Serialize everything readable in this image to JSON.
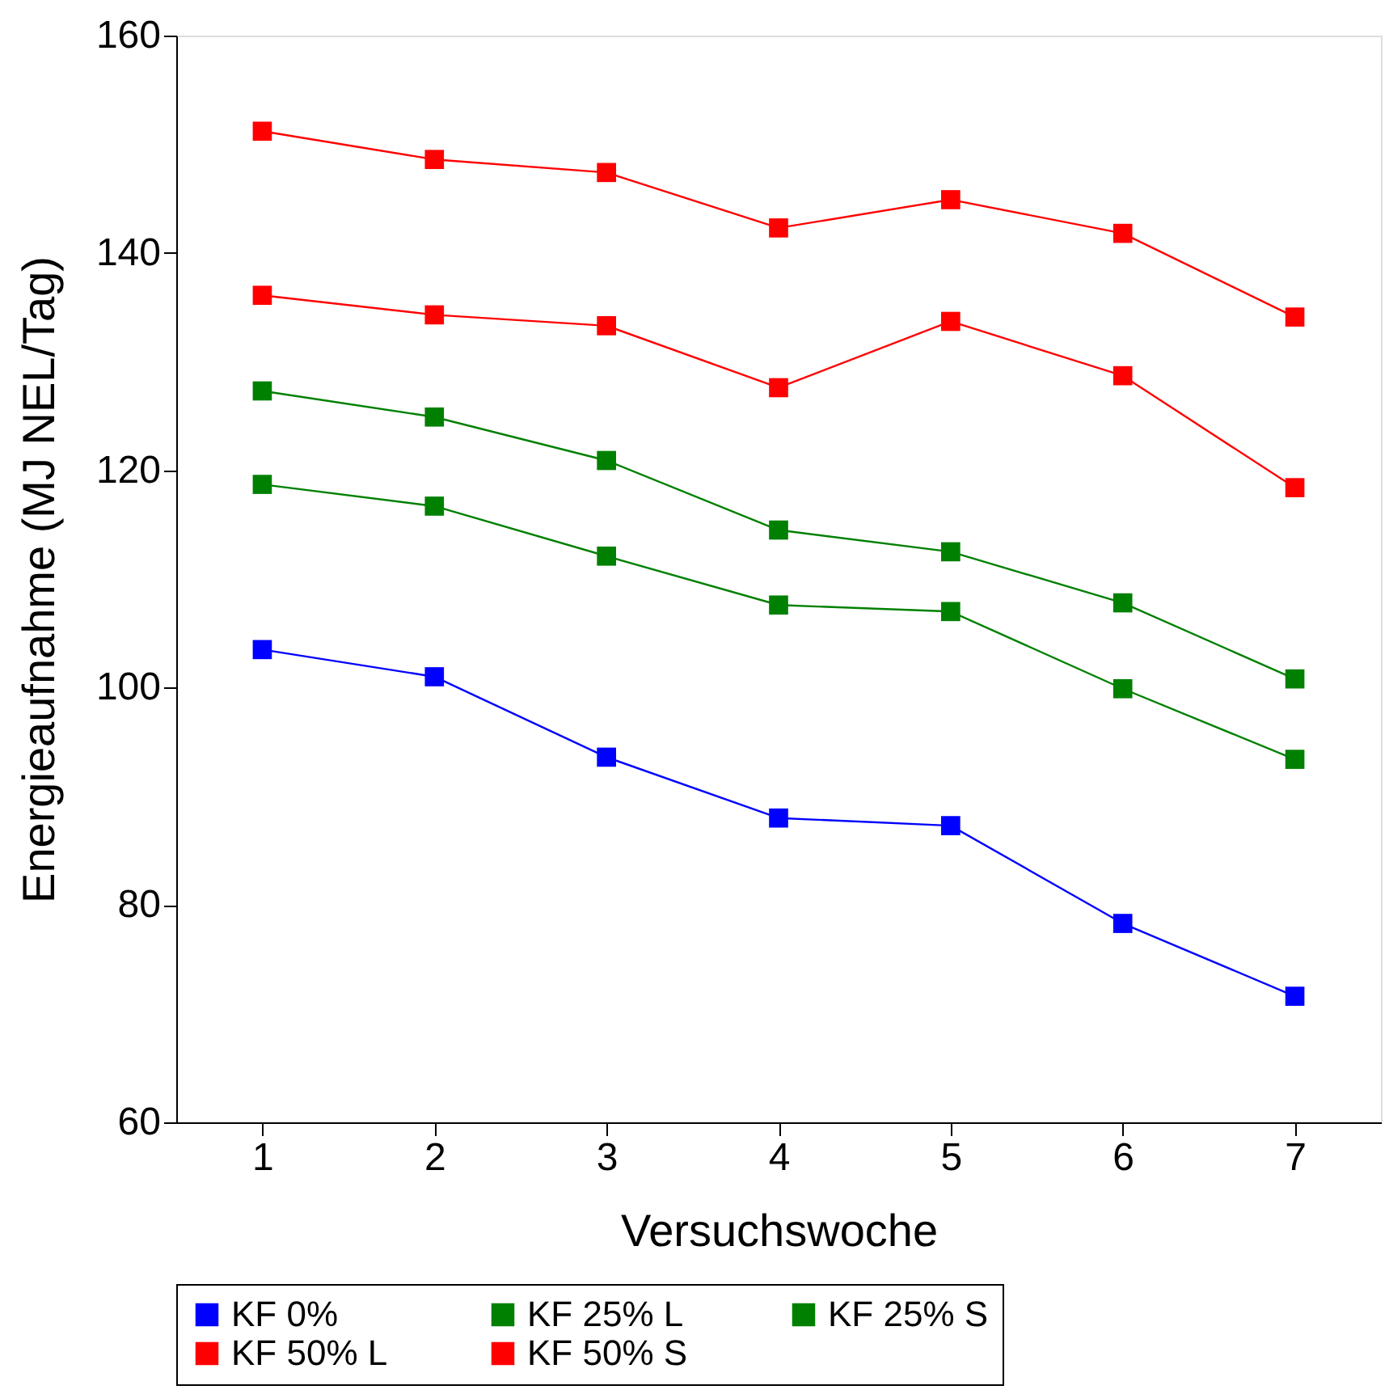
{
  "chart_data": {
    "type": "line",
    "xlabel": "Versuchswoche",
    "ylabel": "Energieaufnahme (MJ NEL/Tag)",
    "x": [
      1,
      2,
      3,
      4,
      5,
      6,
      7
    ],
    "xlim": [
      0.5,
      7.5
    ],
    "xticks": [
      1,
      2,
      3,
      4,
      5,
      6,
      7
    ],
    "ylim": [
      60,
      160
    ],
    "yticks": [
      60,
      80,
      100,
      120,
      140,
      160
    ],
    "grid": false,
    "legend": "bottom",
    "marker": "square",
    "line_style": "solid",
    "series": [
      {
        "name": "KF 0%",
        "color": "#0000ff",
        "values": [
          103.5,
          101.0,
          93.6,
          88.0,
          87.3,
          78.3,
          71.6
        ]
      },
      {
        "name": "KF 25% L",
        "color": "#008000",
        "values": [
          127.3,
          124.9,
          120.9,
          114.5,
          112.5,
          107.8,
          100.8
        ]
      },
      {
        "name": "KF 25% S",
        "color": "#008000",
        "values": [
          118.7,
          116.7,
          112.1,
          107.6,
          107.0,
          99.9,
          93.4
        ]
      },
      {
        "name": "KF 50% L",
        "color": "#ff0000",
        "values": [
          151.2,
          148.6,
          147.4,
          142.3,
          144.9,
          141.8,
          134.1
        ]
      },
      {
        "name": "KF 50% S",
        "color": "#ff0000",
        "values": [
          136.1,
          134.3,
          133.3,
          127.6,
          133.7,
          128.7,
          118.4
        ]
      }
    ]
  }
}
